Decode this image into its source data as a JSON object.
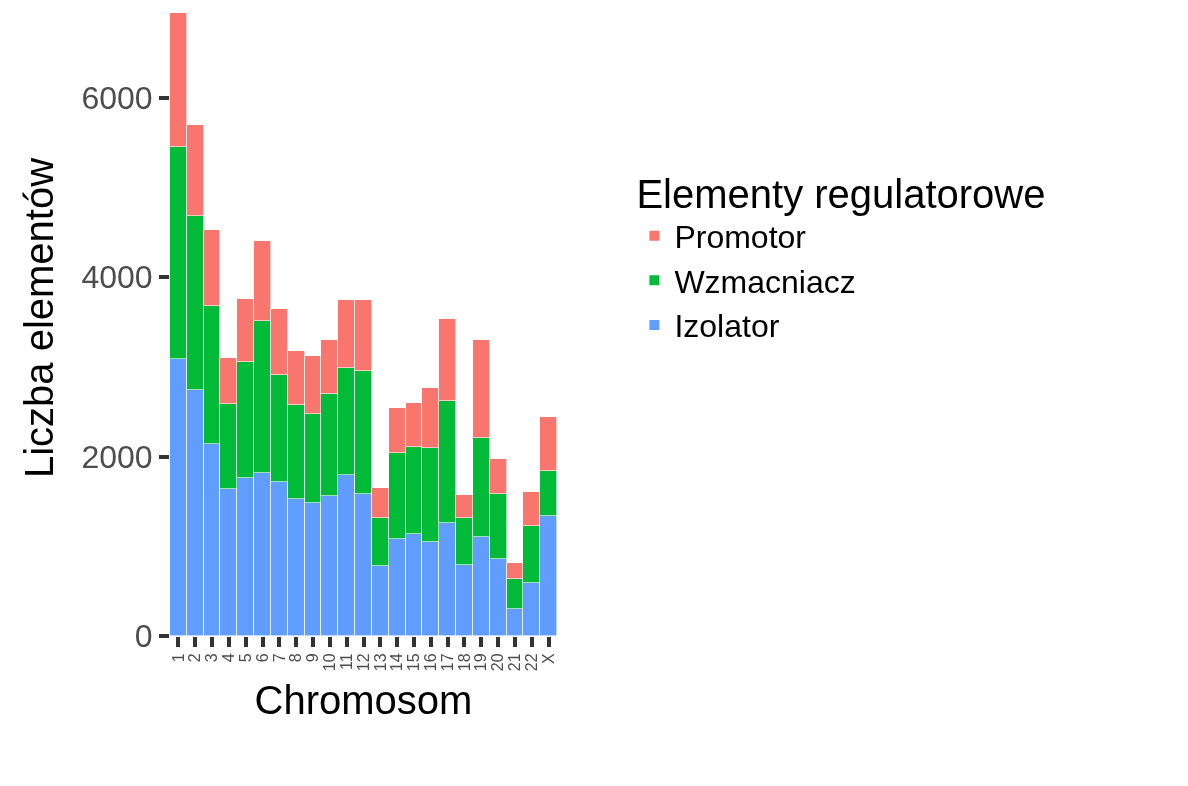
{
  "chart_data": {
    "type": "bar",
    "stacked": true,
    "xlabel": "Chromosom",
    "ylabel": "Liczba elementów",
    "legend_title": "Elementy regulatorowe",
    "legend": "right",
    "categories": [
      "1",
      "2",
      "3",
      "4",
      "5",
      "6",
      "7",
      "8",
      "9",
      "10",
      "11",
      "12",
      "13",
      "14",
      "15",
      "16",
      "17",
      "18",
      "19",
      "20",
      "21",
      "22",
      "X"
    ],
    "ylim": [
      0,
      7090
    ],
    "yticks": [
      0,
      2000,
      4000,
      6000
    ],
    "series": [
      {
        "name": "Izolator",
        "color": "#619cff",
        "values": [
          3090,
          2740,
          2140,
          1640,
          1760,
          1820,
          1720,
          1530,
          1480,
          1560,
          1800,
          1580,
          780,
          1080,
          1140,
          1050,
          1260,
          790,
          1100,
          860,
          300,
          590,
          1340
        ]
      },
      {
        "name": "Wzmacniacz",
        "color": "#00ba38",
        "values": [
          2360,
          1940,
          1540,
          950,
          1290,
          1690,
          1190,
          1050,
          1000,
          1140,
          1190,
          1370,
          540,
          960,
          970,
          1050,
          1360,
          530,
          1110,
          720,
          330,
          640,
          500
        ]
      },
      {
        "name": "Promotor",
        "color": "#f8766d",
        "values": [
          1500,
          1020,
          850,
          510,
          710,
          890,
          740,
          600,
          640,
          600,
          760,
          800,
          330,
          500,
          490,
          670,
          910,
          250,
          1090,
          390,
          180,
          370,
          600
        ]
      }
    ]
  }
}
